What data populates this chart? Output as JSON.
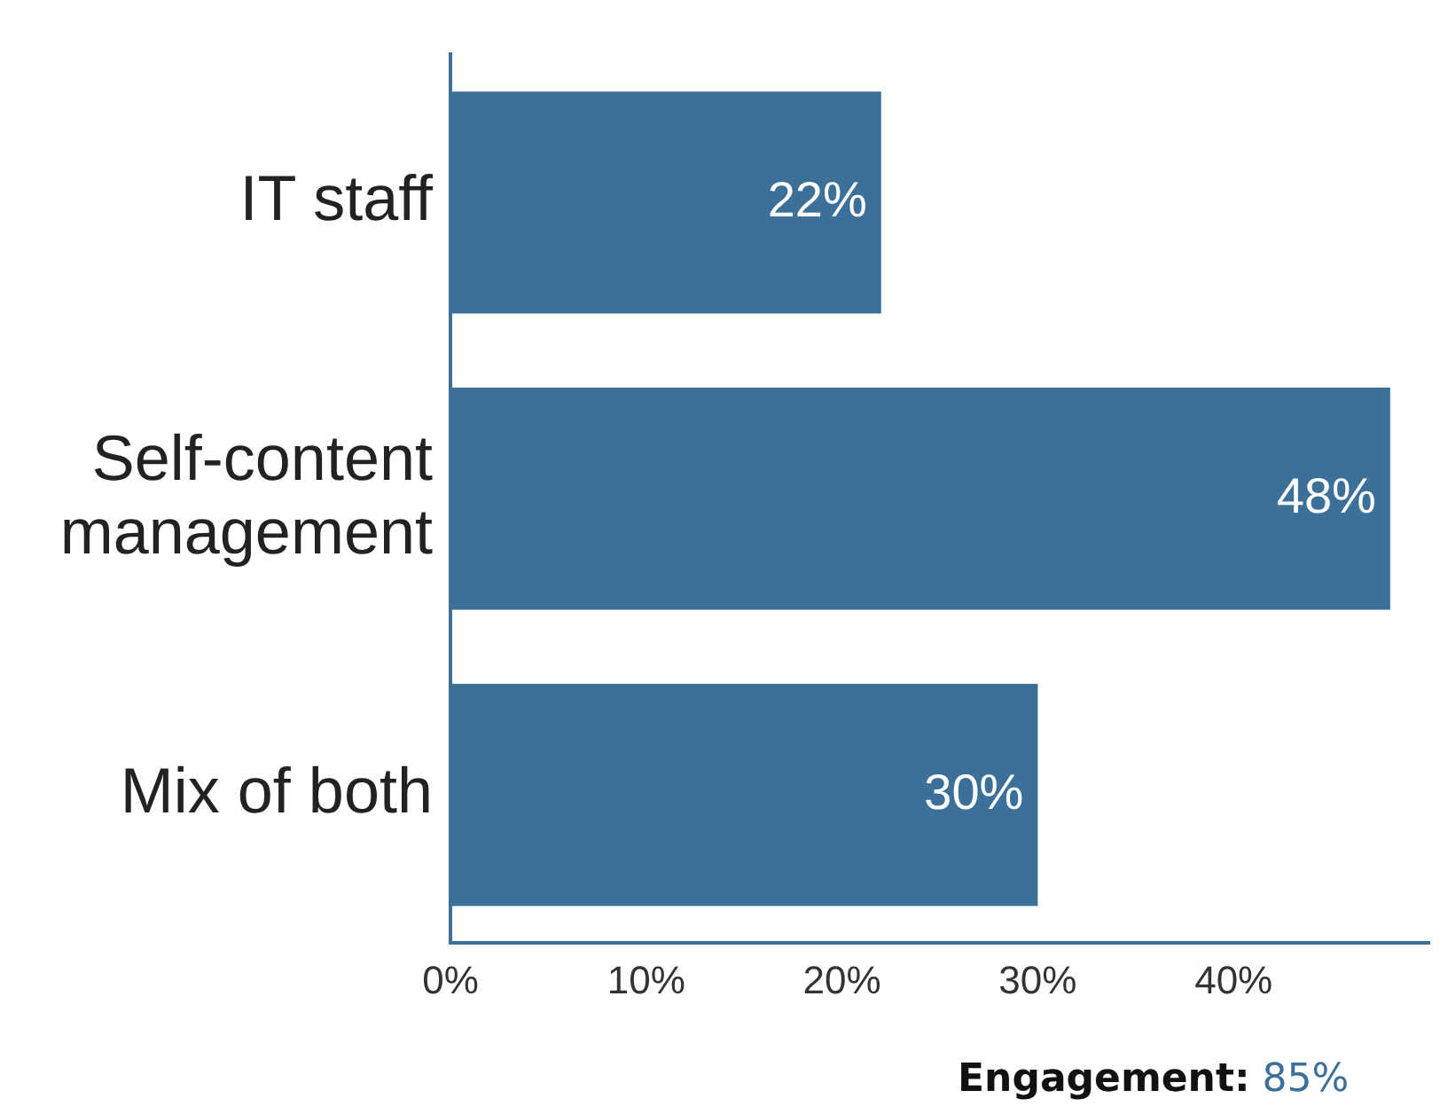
{
  "chart_data": {
    "type": "bar",
    "orientation": "horizontal",
    "categories": [
      "IT staff",
      "Self-content management",
      "Mix of both"
    ],
    "values": [
      22,
      48,
      30
    ],
    "color": "#3c7099",
    "xlim": [
      0,
      50
    ],
    "xticks": [
      {
        "value": 0,
        "label": "0%"
      },
      {
        "value": 10,
        "label": "10%"
      },
      {
        "value": 20,
        "label": "20%"
      },
      {
        "value": 30,
        "label": "30%"
      },
      {
        "value": 40,
        "label": "40%"
      }
    ],
    "grid": false,
    "legend": false,
    "value_labels": [
      "22%",
      "48%",
      "30%"
    ],
    "annotations": [
      "Engagement:",
      "85%"
    ]
  }
}
